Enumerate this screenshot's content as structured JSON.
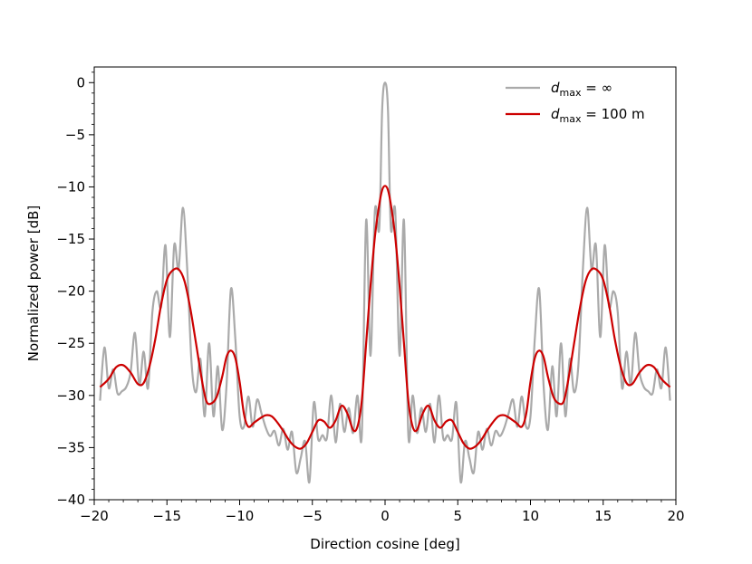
{
  "chart_data": {
    "type": "line",
    "xlabel": "Direction cosine [deg]",
    "ylabel": "Normalized power [dB]",
    "xlim": [
      -20,
      20
    ],
    "ylim": [
      -40,
      1.5
    ],
    "xticks": [
      -20,
      -15,
      -10,
      -5,
      0,
      5,
      10,
      15,
      20
    ],
    "xtick_labels": [
      "−20",
      "−15",
      "−10",
      "−5",
      "0",
      "5",
      "10",
      "15",
      "20"
    ],
    "yticks": [
      0,
      -5,
      -10,
      -15,
      -20,
      -25,
      -30,
      -35,
      -40
    ],
    "ytick_labels": [
      "0",
      "−5",
      "−10",
      "−15",
      "−20",
      "−25",
      "−30",
      "−35",
      "−40"
    ],
    "grid": false,
    "legend_position": "top-right",
    "series": [
      {
        "name": "d_max = ∞",
        "legend_parts": {
          "italic": "d",
          "sub": "max",
          "rest": " = ∞"
        },
        "color": "#aaaaaa",
        "x": [
          -19.6,
          -19.3,
          -19.0,
          -18.7,
          -18.4,
          -18.1,
          -17.8,
          -17.5,
          -17.2,
          -16.9,
          -16.6,
          -16.3,
          -16.0,
          -15.7,
          -15.4,
          -15.1,
          -14.8,
          -14.5,
          -14.2,
          -13.9,
          -13.6,
          -13.3,
          -13.0,
          -12.7,
          -12.4,
          -12.1,
          -11.8,
          -11.5,
          -11.2,
          -10.9,
          -10.6,
          -10.3,
          -10.0,
          -9.7,
          -9.4,
          -9.1,
          -8.8,
          -8.5,
          -8.2,
          -7.9,
          -7.6,
          -7.3,
          -7.0,
          -6.7,
          -6.4,
          -6.1,
          -5.8,
          -5.5,
          -5.2,
          -4.9,
          -4.6,
          -4.3,
          -4.0,
          -3.7,
          -3.4,
          -3.1,
          -2.8,
          -2.5,
          -2.2,
          -1.9,
          -1.6,
          -1.3,
          -1.0,
          -0.7,
          -0.4,
          -0.2,
          0.0,
          0.2,
          0.4,
          0.7,
          1.0,
          1.3,
          1.6,
          1.9,
          2.2,
          2.5,
          2.8,
          3.1,
          3.4,
          3.7,
          4.0,
          4.3,
          4.6,
          4.9,
          5.2,
          5.5,
          5.8,
          6.1,
          6.4,
          6.7,
          7.0,
          7.3,
          7.6,
          7.9,
          8.2,
          8.5,
          8.8,
          9.1,
          9.4,
          9.7,
          10.0,
          10.3,
          10.6,
          10.9,
          11.2,
          11.5,
          11.8,
          12.1,
          12.4,
          12.7,
          13.0,
          13.3,
          13.6,
          13.9,
          14.2,
          14.5,
          14.8,
          15.1,
          15.4,
          15.7,
          16.0,
          16.3,
          16.6,
          16.9,
          17.2,
          17.5,
          17.8,
          18.1,
          18.4,
          18.7,
          19.0,
          19.3,
          19.6
        ],
        "y": [
          -30.5,
          -25.4,
          -29.3,
          -27.5,
          -29.8,
          -29.6,
          -29.2,
          -27.8,
          -24.0,
          -29.0,
          -25.8,
          -29.3,
          -22.0,
          -20.0,
          -21.5,
          -15.6,
          -24.4,
          -15.6,
          -17.9,
          -12.0,
          -18.0,
          -27.0,
          -29.7,
          -26.5,
          -32.0,
          -25.0,
          -32.0,
          -27.2,
          -33.3,
          -29.0,
          -19.8,
          -24.5,
          -32.0,
          -33.0,
          -30.1,
          -33.0,
          -30.4,
          -31.7,
          -33.1,
          -33.9,
          -33.4,
          -34.8,
          -33.2,
          -35.2,
          -33.5,
          -37.4,
          -36.0,
          -34.4,
          -38.3,
          -30.7,
          -34.2,
          -33.8,
          -34.1,
          -30.0,
          -34.5,
          -30.8,
          -33.5,
          -31.2,
          -33.6,
          -30.0,
          -33.8,
          -13.2,
          -26.2,
          -12.3,
          -14.0,
          -2.6,
          0.0,
          -2.6,
          -14.0,
          -12.3,
          -26.2,
          -13.2,
          -33.8,
          -30.0,
          -33.6,
          -31.2,
          -33.5,
          -30.8,
          -34.5,
          -30.0,
          -34.1,
          -33.8,
          -34.2,
          -30.7,
          -38.3,
          -34.4,
          -36.0,
          -37.4,
          -33.5,
          -35.2,
          -33.2,
          -34.8,
          -33.4,
          -33.9,
          -33.1,
          -31.7,
          -30.4,
          -33.0,
          -30.1,
          -33.0,
          -32.0,
          -24.5,
          -19.8,
          -29.0,
          -33.3,
          -27.2,
          -32.0,
          -25.0,
          -32.0,
          -26.5,
          -29.7,
          -27.0,
          -18.0,
          -12.0,
          -17.9,
          -15.6,
          -24.4,
          -15.6,
          -21.5,
          -20.0,
          -22.0,
          -29.3,
          -25.8,
          -29.0,
          -24.0,
          -27.8,
          -29.2,
          -29.6,
          -29.8,
          -27.5,
          -29.3,
          -25.4,
          -30.5
        ]
      },
      {
        "name": "d_max = 100 m",
        "legend_parts": {
          "italic": "d",
          "sub": "max",
          "rest": " = 100 m"
        },
        "color": "#cc0000",
        "x": [
          -19.6,
          -19.0,
          -18.5,
          -18.0,
          -17.5,
          -17.0,
          -16.6,
          -16.2,
          -15.8,
          -15.4,
          -15.0,
          -14.6,
          -14.2,
          -13.8,
          -13.4,
          -13.0,
          -12.6,
          -12.3,
          -12.0,
          -11.6,
          -11.2,
          -10.9,
          -10.6,
          -10.3,
          -10.0,
          -9.7,
          -9.4,
          -9.0,
          -8.6,
          -8.2,
          -7.8,
          -7.4,
          -7.0,
          -6.6,
          -6.2,
          -5.8,
          -5.4,
          -5.0,
          -4.6,
          -4.2,
          -3.8,
          -3.4,
          -3.0,
          -2.6,
          -2.2,
          -1.9,
          -1.6,
          -1.3,
          -1.0,
          -0.7,
          -0.4,
          -0.2,
          0.0,
          0.2,
          0.4,
          0.7,
          1.0,
          1.3,
          1.6,
          1.9,
          2.2,
          2.6,
          3.0,
          3.4,
          3.8,
          4.2,
          4.6,
          5.0,
          5.4,
          5.8,
          6.2,
          6.6,
          7.0,
          7.4,
          7.8,
          8.2,
          8.6,
          9.0,
          9.4,
          9.7,
          10.0,
          10.3,
          10.6,
          10.9,
          11.2,
          11.6,
          12.0,
          12.3,
          12.6,
          13.0,
          13.4,
          13.8,
          14.2,
          14.6,
          15.0,
          15.4,
          15.8,
          16.2,
          16.6,
          17.0,
          17.5,
          18.0,
          18.5,
          19.0,
          19.6
        ],
        "y": [
          -29.2,
          -28.4,
          -27.3,
          -27.1,
          -27.8,
          -28.9,
          -28.8,
          -27.2,
          -24.6,
          -21.3,
          -18.9,
          -18.0,
          -17.9,
          -19.0,
          -21.6,
          -25.0,
          -28.5,
          -30.5,
          -30.8,
          -30.2,
          -28.2,
          -26.3,
          -25.7,
          -26.4,
          -28.7,
          -31.8,
          -33.0,
          -32.6,
          -32.2,
          -31.9,
          -32.0,
          -32.6,
          -33.4,
          -34.3,
          -34.9,
          -35.1,
          -34.6,
          -33.5,
          -32.4,
          -32.5,
          -33.1,
          -32.4,
          -31.0,
          -31.7,
          -33.3,
          -33.0,
          -30.5,
          -25.0,
          -19.5,
          -14.8,
          -11.7,
          -10.3,
          -9.9,
          -10.3,
          -11.7,
          -14.8,
          -19.5,
          -25.0,
          -30.5,
          -33.0,
          -33.3,
          -31.7,
          -31.0,
          -32.4,
          -33.1,
          -32.5,
          -32.4,
          -33.5,
          -34.6,
          -35.1,
          -34.9,
          -34.3,
          -33.4,
          -32.6,
          -32.0,
          -31.9,
          -32.2,
          -32.6,
          -33.0,
          -31.8,
          -28.7,
          -26.4,
          -25.7,
          -26.3,
          -28.2,
          -30.2,
          -30.8,
          -30.5,
          -28.5,
          -25.0,
          -21.6,
          -19.0,
          -17.9,
          -18.0,
          -18.9,
          -21.3,
          -24.6,
          -27.2,
          -28.8,
          -28.9,
          -27.8,
          -27.1,
          -27.3,
          -28.4,
          -29.2
        ]
      }
    ]
  }
}
